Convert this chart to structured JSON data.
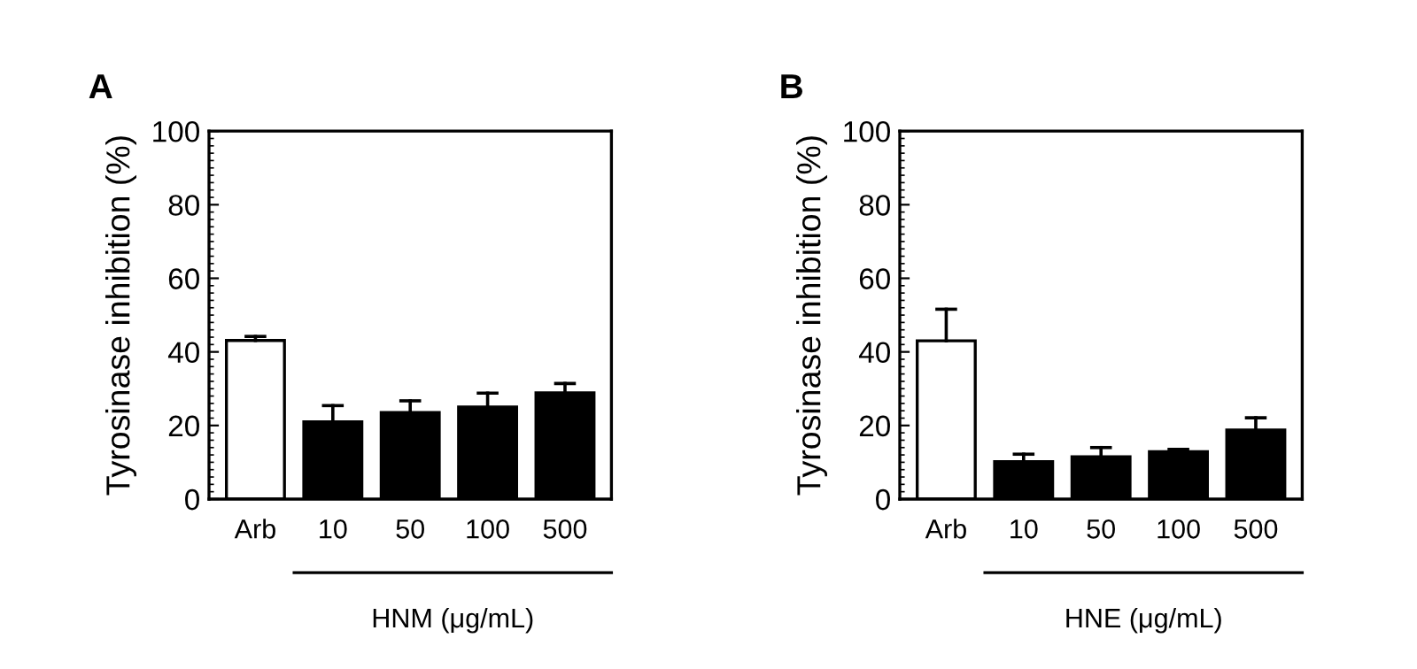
{
  "chart_data": [
    {
      "type": "bar",
      "title": "A",
      "ylabel": "Tyrosinase inhibition (%)",
      "xlabel": "HNM (μg/mL)",
      "categories": [
        "Arb",
        "10",
        "50",
        "100",
        "500"
      ],
      "values": [
        43.1,
        21,
        23.5,
        25,
        28.9
      ],
      "errors": [
        [
          43.1,
          44.2
        ],
        [
          21,
          25.4
        ],
        [
          23.5,
          26.7
        ],
        [
          25,
          28.8
        ],
        [
          28.9,
          31.4
        ]
      ],
      "colors": [
        "#ffffff",
        "#000000",
        "#000000",
        "#000000",
        "#000000"
      ],
      "ylim": [
        0,
        100
      ],
      "yticks": [
        0,
        20,
        40,
        60,
        80,
        100
      ],
      "grid": false,
      "legend": false
    },
    {
      "type": "bar",
      "title": "B",
      "ylabel": "Tyrosinase inhibition (%)",
      "xlabel": "HNE (μg/mL)",
      "categories": [
        "Arb",
        "10",
        "50",
        "100",
        "500"
      ],
      "values": [
        43,
        10.2,
        11.5,
        12.9,
        18.8
      ],
      "errors": [
        [
          43,
          51.6
        ],
        [
          10.2,
          12.2
        ],
        [
          11.5,
          14
        ],
        [
          12.9,
          13.5
        ],
        [
          18.8,
          22.1
        ]
      ],
      "colors": [
        "#ffffff",
        "#000000",
        "#000000",
        "#000000",
        "#000000"
      ],
      "ylim": [
        0,
        100
      ],
      "yticks": [
        0,
        20,
        40,
        60,
        80,
        100
      ],
      "grid": false,
      "legend": false
    }
  ]
}
